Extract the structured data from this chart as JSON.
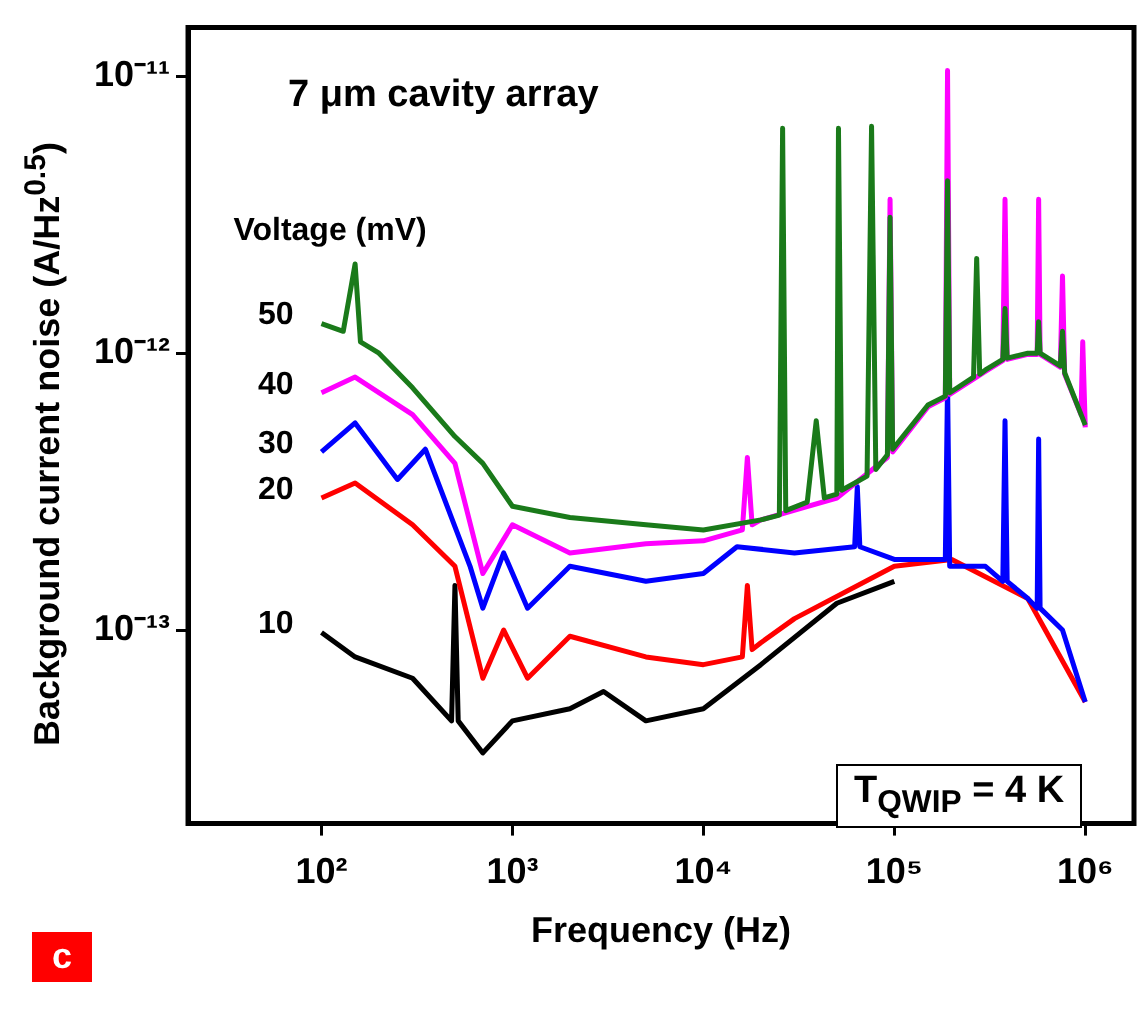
{
  "chart_data": {
    "type": "line",
    "title": "7 μm cavity array",
    "xlabel": "Frequency (Hz)",
    "ylabel": "Background current noise (A/Hz$^{0.5}$)",
    "legend_title": "Voltage (mV)",
    "log": "xy",
    "xlim": [
      20,
      1800000
    ],
    "ylim": [
      2e-14,
      1.5e-11
    ],
    "xticks": [
      {
        "value": 100,
        "label": "10²"
      },
      {
        "value": 1000,
        "label": "10³"
      },
      {
        "value": 10000,
        "label": "10⁴"
      },
      {
        "value": 100000,
        "label": "10⁵"
      },
      {
        "value": 1000000,
        "label": "10⁶"
      }
    ],
    "yticks": [
      {
        "value": 1e-13,
        "label": "10⁻¹³"
      },
      {
        "value": 1e-12,
        "label": "10⁻¹²"
      },
      {
        "value": 1e-11,
        "label": "10⁻¹¹"
      }
    ],
    "grid": false,
    "legend": false,
    "marker": "none",
    "line_style": "solid",
    "annotations": [
      "T$_{QWIP}$ = 4 K",
      "c"
    ],
    "series": [
      {
        "name": "50",
        "color": "#1a7a1a",
        "x": [
          100,
          130,
          150,
          160,
          200,
          300,
          500,
          700,
          1000,
          2000,
          5000,
          10000,
          20000,
          25000,
          26000,
          27000,
          35000,
          39000,
          43000,
          50000,
          51000,
          53000,
          72000,
          76000,
          80000,
          92000,
          95000,
          98000,
          150000,
          185000,
          190000,
          195000,
          260000,
          270000,
          280000,
          300000,
          370000,
          380000,
          390000,
          500000,
          560000,
          570000,
          580000,
          740000,
          760000,
          780000,
          1000000
        ],
        "values": [
          1.28e-12,
          1.2e-12,
          2.1e-12,
          1.1e-12,
          1e-12,
          7.5e-13,
          5e-13,
          4e-13,
          2.8e-13,
          2.55e-13,
          2.4e-13,
          2.3e-13,
          2.5e-13,
          2.6e-13,
          6.5e-12,
          2.7e-13,
          2.9e-13,
          5.7e-13,
          3e-13,
          3.1e-13,
          6.5e-12,
          3.2e-13,
          3.6e-13,
          6.6e-12,
          3.8e-13,
          4.3e-13,
          3.1e-12,
          4.5e-13,
          6.5e-13,
          7e-13,
          4.2e-12,
          7.2e-13,
          8.2e-13,
          2.2e-12,
          8.4e-13,
          8.7e-13,
          9.5e-13,
          1.45e-12,
          9.6e-13,
          1e-12,
          1e-12,
          1.3e-12,
          1e-12,
          9e-13,
          1.2e-12,
          8.5e-13,
          5.5e-13
        ]
      },
      {
        "name": "40",
        "color": "#ff00ff",
        "x": [
          100,
          150,
          300,
          500,
          700,
          1000,
          2000,
          5000,
          10000,
          16000,
          17000,
          18000,
          20000,
          50000,
          92000,
          95000,
          98000,
          150000,
          185000,
          190000,
          195000,
          300000,
          370000,
          380000,
          390000,
          500000,
          560000,
          570000,
          580000,
          740000,
          760000,
          780000,
          950000,
          970000,
          1000000
        ],
        "values": [
          7.2e-13,
          8.2e-13,
          6e-13,
          4e-13,
          1.6e-13,
          2.4e-13,
          1.9e-13,
          2.05e-13,
          2.1e-13,
          2.3e-13,
          4.2e-13,
          2.4e-13,
          2.5e-13,
          3e-13,
          4.2e-13,
          3.6e-12,
          4.4e-13,
          6.4e-13,
          6.9e-13,
          1.05e-11,
          7.1e-13,
          8.6e-13,
          9.4e-13,
          3.6e-12,
          9.5e-13,
          9.9e-13,
          9.9e-13,
          3.6e-12,
          9.9e-13,
          8.9e-13,
          1.9e-12,
          8.4e-13,
          6e-13,
          1.1e-12,
          5.4e-13
        ]
      },
      {
        "name": "30",
        "color": "#0000ff",
        "x": [
          100,
          150,
          250,
          350,
          600,
          700,
          900,
          1200,
          2000,
          5000,
          10000,
          15000,
          30000,
          62000,
          64000,
          66000,
          100000,
          185000,
          190000,
          195000,
          300000,
          370000,
          380000,
          390000,
          500000,
          560000,
          570000,
          580000,
          760000,
          1000000
        ],
        "values": [
          4.4e-13,
          5.6e-13,
          3.5e-13,
          4.5e-13,
          1.7e-13,
          1.2e-13,
          1.9e-13,
          1.2e-13,
          1.7e-13,
          1.5e-13,
          1.6e-13,
          2e-13,
          1.9e-13,
          2e-13,
          3.3e-13,
          2e-13,
          1.8e-13,
          1.8e-13,
          7.8e-13,
          1.7e-13,
          1.7e-13,
          1.5e-13,
          5.7e-13,
          1.5e-13,
          1.3e-13,
          1.2e-13,
          4.9e-13,
          1.2e-13,
          1e-13,
          5.5e-14
        ]
      },
      {
        "name": "20",
        "color": "#ff0000",
        "x": [
          100,
          150,
          300,
          500,
          700,
          900,
          1200,
          2000,
          5000,
          10000,
          16000,
          17000,
          18000,
          20000,
          30000,
          100000,
          200000,
          500000,
          1000000
        ],
        "values": [
          3e-13,
          3.4e-13,
          2.4e-13,
          1.7e-13,
          6.7e-14,
          1e-13,
          6.7e-14,
          9.5e-14,
          8e-14,
          7.5e-14,
          8e-14,
          1.45e-13,
          8.5e-14,
          9e-14,
          1.1e-13,
          1.7e-13,
          1.8e-13,
          1.3e-13,
          5.5e-14
        ]
      },
      {
        "name": "10",
        "color": "#000000",
        "x": [
          100,
          150,
          300,
          480,
          500,
          520,
          700,
          1000,
          2000,
          3000,
          5000,
          10000,
          20000,
          50000,
          100000
        ],
        "values": [
          9.8e-14,
          8e-14,
          6.7e-14,
          4.7e-14,
          1.45e-13,
          4.7e-14,
          3.6e-14,
          4.7e-14,
          5.2e-14,
          6e-14,
          4.7e-14,
          5.2e-14,
          7.5e-14,
          1.25e-13,
          1.5e-13
        ]
      }
    ]
  }
}
